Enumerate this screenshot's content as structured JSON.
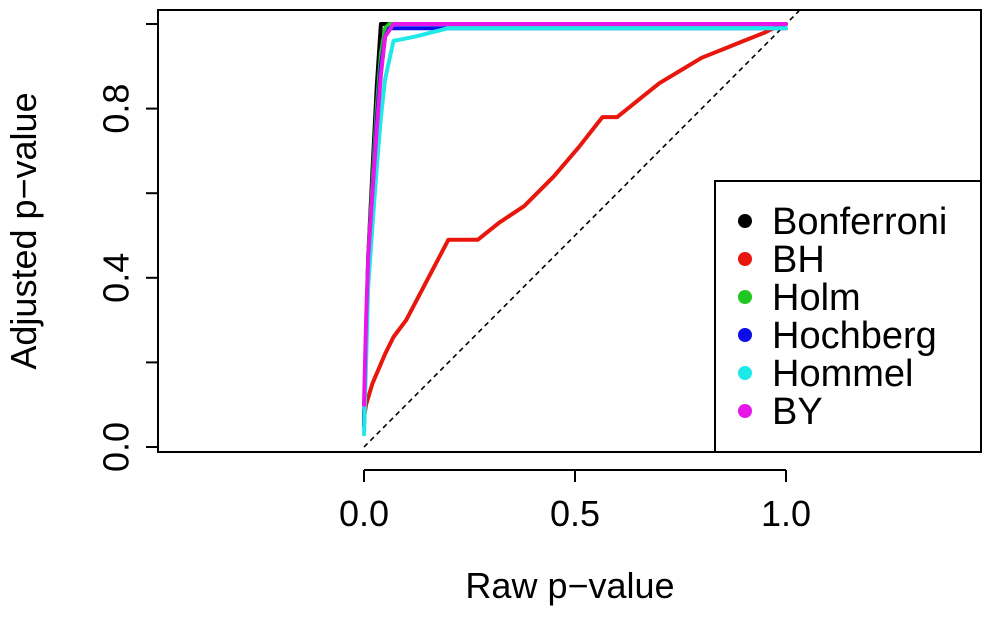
{
  "chart_data": {
    "type": "line",
    "title": "",
    "xlabel": "Raw p−value",
    "ylabel": "Adjusted p−value",
    "xlim": [
      -0.5,
      1.5
    ],
    "ylim": [
      0,
      1
    ],
    "x_ticks": [
      {
        "value": 0.0,
        "label": "0.0"
      },
      {
        "value": 0.5,
        "label": "0.5"
      },
      {
        "value": 1.0,
        "label": "1.0"
      }
    ],
    "y_ticks": [
      {
        "value": 0.0,
        "label": "0.0"
      },
      {
        "value": 0.2,
        "label": ""
      },
      {
        "value": 0.4,
        "label": "0.4"
      },
      {
        "value": 0.6,
        "label": ""
      },
      {
        "value": 0.8,
        "label": "0.8"
      },
      {
        "value": 1.0,
        "label": ""
      }
    ],
    "reference_line": {
      "style": "dashed",
      "color": "#000000",
      "x": [
        0,
        1
      ],
      "y": [
        0,
        1
      ]
    },
    "legend": {
      "placement": "bottom-right"
    },
    "series": [
      {
        "name": "Bonferroni",
        "color": "#000000",
        "x": [
          0.0,
          0.005,
          0.01,
          0.02,
          0.03,
          0.04,
          0.05,
          0.1,
          0.5,
          1.0
        ],
        "y": [
          0.05,
          0.25,
          0.45,
          0.65,
          0.85,
          1.0,
          1.0,
          1.0,
          1.0,
          1.0
        ]
      },
      {
        "name": "BH",
        "color": "#e8160c",
        "x": [
          0.0,
          0.005,
          0.02,
          0.05,
          0.07,
          0.1,
          0.2,
          0.27,
          0.32,
          0.38,
          0.45,
          0.51,
          0.565,
          0.58,
          0.6,
          0.65,
          0.7,
          0.75,
          0.8,
          0.85,
          0.9,
          0.95,
          0.98
        ],
        "y": [
          0.07,
          0.1,
          0.15,
          0.22,
          0.26,
          0.3,
          0.49,
          0.49,
          0.53,
          0.57,
          0.64,
          0.71,
          0.78,
          0.78,
          0.78,
          0.82,
          0.86,
          0.89,
          0.92,
          0.94,
          0.96,
          0.98,
          0.995
        ]
      },
      {
        "name": "Holm",
        "color": "#1fc71f",
        "x": [
          0.0,
          0.005,
          0.01,
          0.02,
          0.03,
          0.04,
          0.05,
          0.06,
          0.1,
          0.5,
          1.0
        ],
        "y": [
          0.05,
          0.25,
          0.45,
          0.62,
          0.8,
          0.93,
          0.99,
          1.0,
          1.0,
          1.0,
          1.0
        ]
      },
      {
        "name": "Hochberg",
        "color": "#0c0ce8",
        "x": [
          0.0,
          0.005,
          0.01,
          0.02,
          0.03,
          0.04,
          0.05,
          0.06,
          0.1,
          0.5,
          1.0
        ],
        "y": [
          0.05,
          0.25,
          0.43,
          0.6,
          0.77,
          0.9,
          0.97,
          0.99,
          0.99,
          0.99,
          0.99
        ]
      },
      {
        "name": "Hommel",
        "color": "#1fe8e8",
        "x": [
          0.0,
          0.005,
          0.01,
          0.02,
          0.03,
          0.04,
          0.05,
          0.07,
          0.12,
          0.2,
          0.5,
          1.0
        ],
        "y": [
          0.03,
          0.2,
          0.38,
          0.52,
          0.66,
          0.78,
          0.87,
          0.96,
          0.97,
          0.99,
          0.99,
          0.99
        ]
      },
      {
        "name": "BY",
        "color": "#e816e8",
        "x": [
          0.0,
          0.005,
          0.01,
          0.02,
          0.03,
          0.04,
          0.05,
          0.07,
          0.1,
          0.5,
          1.0
        ],
        "y": [
          0.1,
          0.3,
          0.45,
          0.6,
          0.75,
          0.88,
          0.97,
          1.0,
          1.0,
          1.0,
          1.0
        ]
      }
    ]
  }
}
